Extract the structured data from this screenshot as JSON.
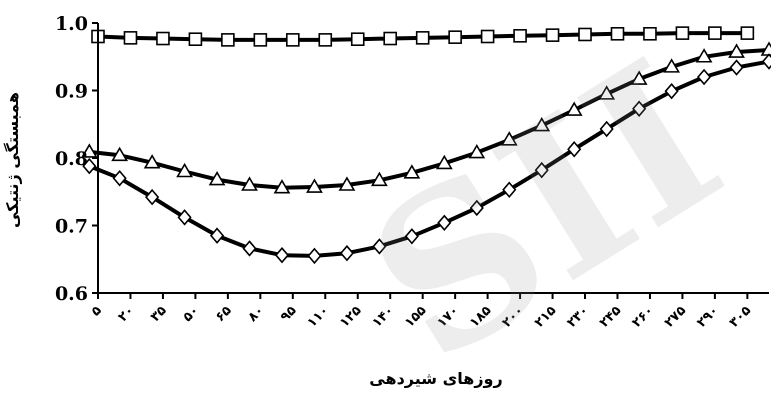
{
  "chart_data": {
    "type": "line",
    "xlabel": "روزهای شیردهی",
    "ylabel": "همبستگی ژنتیکی",
    "ylim": [
      0.6,
      1.0
    ],
    "yticks": [
      "0.6",
      "0.7",
      "0.8",
      "0.9",
      "1.0"
    ],
    "x": [
      5,
      20,
      35,
      50,
      65,
      80,
      95,
      110,
      125,
      140,
      155,
      170,
      185,
      200,
      215,
      230,
      245,
      260,
      275,
      290,
      305
    ],
    "x_tick_labels": [
      "۵",
      "۲۰",
      "۳۵",
      "۵۰",
      "۶۵",
      "۸۰",
      "۹۵",
      "۱۱۰",
      "۱۲۵",
      "۱۴۰",
      "۱۵۵",
      "۱۷۰",
      "۱۸۵",
      "۲۰۰",
      "۲۱۵",
      "۲۳۰",
      "۲۴۵",
      "۲۶۰",
      "۲۷۵",
      "۲۹۰",
      "۳۰۵"
    ],
    "series": [
      {
        "marker": "square",
        "x": [
          5,
          20,
          35,
          50,
          65,
          80,
          95,
          110,
          125,
          140,
          155,
          170,
          185,
          200,
          215,
          230,
          245,
          260,
          275,
          290,
          305
        ],
        "values": [
          0.98,
          0.978,
          0.977,
          0.976,
          0.975,
          0.975,
          0.975,
          0.975,
          0.976,
          0.977,
          0.978,
          0.979,
          0.98,
          0.981,
          0.982,
          0.983,
          0.984,
          0.984,
          0.985,
          0.985,
          0.985
        ]
      },
      {
        "marker": "triangle",
        "x": [
          1,
          15,
          30,
          45,
          60,
          75,
          90,
          105,
          120,
          135,
          150,
          165,
          180,
          195,
          210,
          225,
          240,
          255,
          270,
          285,
          300,
          315
        ],
        "values": [
          0.809,
          0.804,
          0.793,
          0.78,
          0.768,
          0.76,
          0.756,
          0.757,
          0.76,
          0.767,
          0.778,
          0.792,
          0.808,
          0.827,
          0.848,
          0.871,
          0.895,
          0.917,
          0.935,
          0.95,
          0.957,
          0.96
        ]
      },
      {
        "marker": "diamond",
        "x": [
          1,
          15,
          30,
          45,
          60,
          75,
          90,
          105,
          120,
          135,
          150,
          165,
          180,
          195,
          210,
          225,
          240,
          255,
          270,
          285,
          300,
          315
        ],
        "values": [
          0.788,
          0.77,
          0.742,
          0.712,
          0.685,
          0.666,
          0.656,
          0.655,
          0.659,
          0.669,
          0.684,
          0.704,
          0.726,
          0.753,
          0.782,
          0.813,
          0.843,
          0.873,
          0.899,
          0.92,
          0.934,
          0.943
        ]
      }
    ],
    "grid": false,
    "legend": "none",
    "colors": {
      "line": "#000000",
      "marker_fill": "#ffffff",
      "axis": "#000000"
    }
  }
}
